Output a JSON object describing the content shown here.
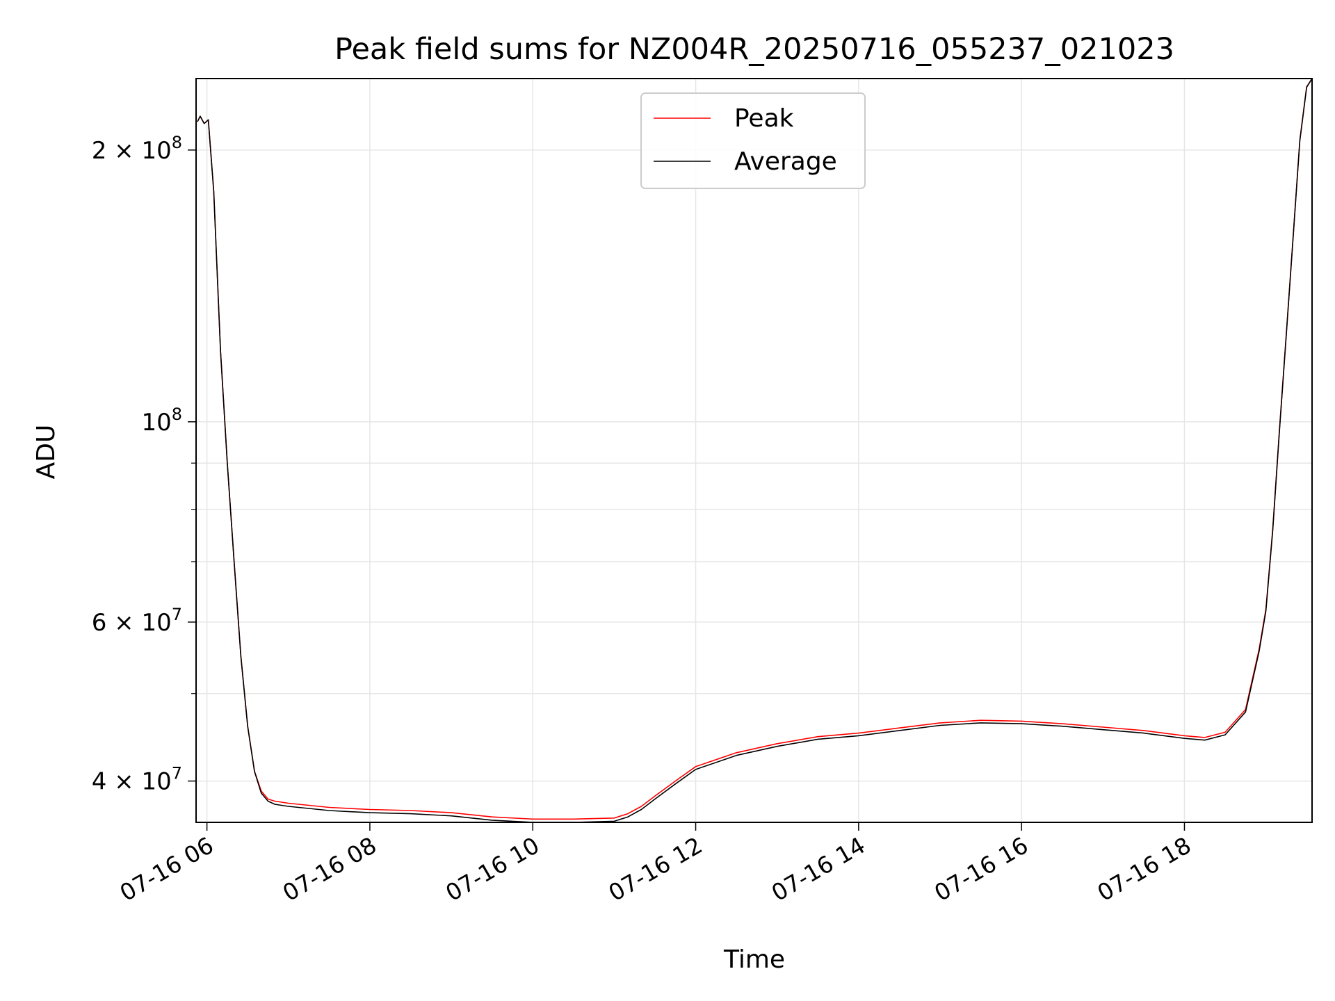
{
  "chart_data": {
    "type": "line",
    "title": "Peak field sums for NZ004R_20250716_055237_021023",
    "xlabel": "Time",
    "ylabel": "ADU",
    "x_axis_type": "datetime",
    "xlim": [
      "2025-07-16 05:52",
      "2025-07-16 19:34"
    ],
    "ylim": [
      36000000,
      240000000
    ],
    "y_scale": "log",
    "grid": true,
    "legend_position": "top-center",
    "x_ticks": [
      {
        "value": "2025-07-16 06:00",
        "label": "07-16 06"
      },
      {
        "value": "2025-07-16 08:00",
        "label": "07-16 08"
      },
      {
        "value": "2025-07-16 10:00",
        "label": "07-16 10"
      },
      {
        "value": "2025-07-16 12:00",
        "label": "07-16 12"
      },
      {
        "value": "2025-07-16 14:00",
        "label": "07-16 14"
      },
      {
        "value": "2025-07-16 16:00",
        "label": "07-16 16"
      },
      {
        "value": "2025-07-16 18:00",
        "label": "07-16 18"
      }
    ],
    "y_ticks_major": [
      {
        "value": 40000000,
        "base": "4 × 10",
        "exp": "7"
      },
      {
        "value": 60000000,
        "base": "6 × 10",
        "exp": "7"
      },
      {
        "value": 100000000,
        "base": "10",
        "exp": "8"
      },
      {
        "value": 200000000,
        "base": "2 × 10",
        "exp": "8"
      }
    ],
    "y_ticks_minor": [
      50000000,
      70000000,
      80000000,
      90000000
    ],
    "series": [
      {
        "name": "Peak",
        "color": "#ff0000",
        "x": [
          "2025-07-16 05:53",
          "2025-07-16 05:55",
          "2025-07-16 05:58",
          "2025-07-16 06:01",
          "2025-07-16 06:05",
          "2025-07-16 06:10",
          "2025-07-16 06:15",
          "2025-07-16 06:20",
          "2025-07-16 06:25",
          "2025-07-16 06:30",
          "2025-07-16 06:35",
          "2025-07-16 06:40",
          "2025-07-16 06:45",
          "2025-07-16 06:50",
          "2025-07-16 07:00",
          "2025-07-16 07:15",
          "2025-07-16 07:30",
          "2025-07-16 08:00",
          "2025-07-16 08:30",
          "2025-07-16 09:00",
          "2025-07-16 09:30",
          "2025-07-16 10:00",
          "2025-07-16 10:30",
          "2025-07-16 11:00",
          "2025-07-16 11:10",
          "2025-07-16 11:20",
          "2025-07-16 11:30",
          "2025-07-16 11:45",
          "2025-07-16 12:00",
          "2025-07-16 12:30",
          "2025-07-16 13:00",
          "2025-07-16 13:30",
          "2025-07-16 14:00",
          "2025-07-16 14:30",
          "2025-07-16 15:00",
          "2025-07-16 15:30",
          "2025-07-16 16:00",
          "2025-07-16 16:30",
          "2025-07-16 17:00",
          "2025-07-16 17:30",
          "2025-07-16 18:00",
          "2025-07-16 18:15",
          "2025-07-16 18:30",
          "2025-07-16 18:45",
          "2025-07-16 18:55",
          "2025-07-16 19:00",
          "2025-07-16 19:05",
          "2025-07-16 19:10",
          "2025-07-16 19:15",
          "2025-07-16 19:20",
          "2025-07-16 19:25",
          "2025-07-16 19:30",
          "2025-07-16 19:34"
        ],
        "values": [
          215000000,
          218000000,
          214000000,
          216000000,
          180000000,
          120000000,
          90000000,
          70000000,
          55000000,
          46000000,
          41000000,
          39000000,
          38200000,
          38000000,
          37800000,
          37600000,
          37400000,
          37200000,
          37100000,
          36900000,
          36500000,
          36300000,
          36300000,
          36400000,
          36800000,
          37500000,
          38500000,
          40000000,
          41500000,
          43000000,
          44000000,
          44800000,
          45200000,
          45800000,
          46400000,
          46700000,
          46600000,
          46300000,
          45900000,
          45500000,
          44900000,
          44700000,
          45300000,
          48000000,
          56000000,
          62000000,
          76000000,
          98000000,
          125000000,
          160000000,
          205000000,
          235000000,
          240000000
        ]
      },
      {
        "name": "Average",
        "color": "#000000",
        "x": [
          "2025-07-16 05:53",
          "2025-07-16 05:55",
          "2025-07-16 05:58",
          "2025-07-16 06:01",
          "2025-07-16 06:05",
          "2025-07-16 06:10",
          "2025-07-16 06:15",
          "2025-07-16 06:20",
          "2025-07-16 06:25",
          "2025-07-16 06:30",
          "2025-07-16 06:35",
          "2025-07-16 06:40",
          "2025-07-16 06:45",
          "2025-07-16 06:50",
          "2025-07-16 07:00",
          "2025-07-16 07:15",
          "2025-07-16 07:30",
          "2025-07-16 08:00",
          "2025-07-16 08:30",
          "2025-07-16 09:00",
          "2025-07-16 09:30",
          "2025-07-16 10:00",
          "2025-07-16 10:30",
          "2025-07-16 11:00",
          "2025-07-16 11:10",
          "2025-07-16 11:20",
          "2025-07-16 11:30",
          "2025-07-16 11:45",
          "2025-07-16 12:00",
          "2025-07-16 12:30",
          "2025-07-16 13:00",
          "2025-07-16 13:30",
          "2025-07-16 14:00",
          "2025-07-16 14:30",
          "2025-07-16 15:00",
          "2025-07-16 15:30",
          "2025-07-16 16:00",
          "2025-07-16 16:30",
          "2025-07-16 17:00",
          "2025-07-16 17:30",
          "2025-07-16 18:00",
          "2025-07-16 18:15",
          "2025-07-16 18:30",
          "2025-07-16 18:45",
          "2025-07-16 18:55",
          "2025-07-16 19:00",
          "2025-07-16 19:05",
          "2025-07-16 19:10",
          "2025-07-16 19:15",
          "2025-07-16 19:20",
          "2025-07-16 19:25",
          "2025-07-16 19:30",
          "2025-07-16 19:34"
        ],
        "values": [
          215000000,
          218000000,
          214000000,
          216000000,
          180000000,
          120000000,
          90000000,
          70000000,
          55000000,
          46000000,
          41000000,
          38800000,
          38000000,
          37700000,
          37500000,
          37300000,
          37100000,
          36900000,
          36800000,
          36600000,
          36200000,
          36000000,
          36000000,
          36100000,
          36500000,
          37200000,
          38200000,
          39700000,
          41200000,
          42700000,
          43700000,
          44500000,
          44900000,
          45500000,
          46100000,
          46400000,
          46300000,
          46000000,
          45600000,
          45200000,
          44600000,
          44400000,
          45000000,
          47700000,
          55700000,
          61700000,
          75700000,
          97700000,
          124700000,
          159700000,
          204700000,
          234700000,
          240000000
        ]
      }
    ]
  }
}
